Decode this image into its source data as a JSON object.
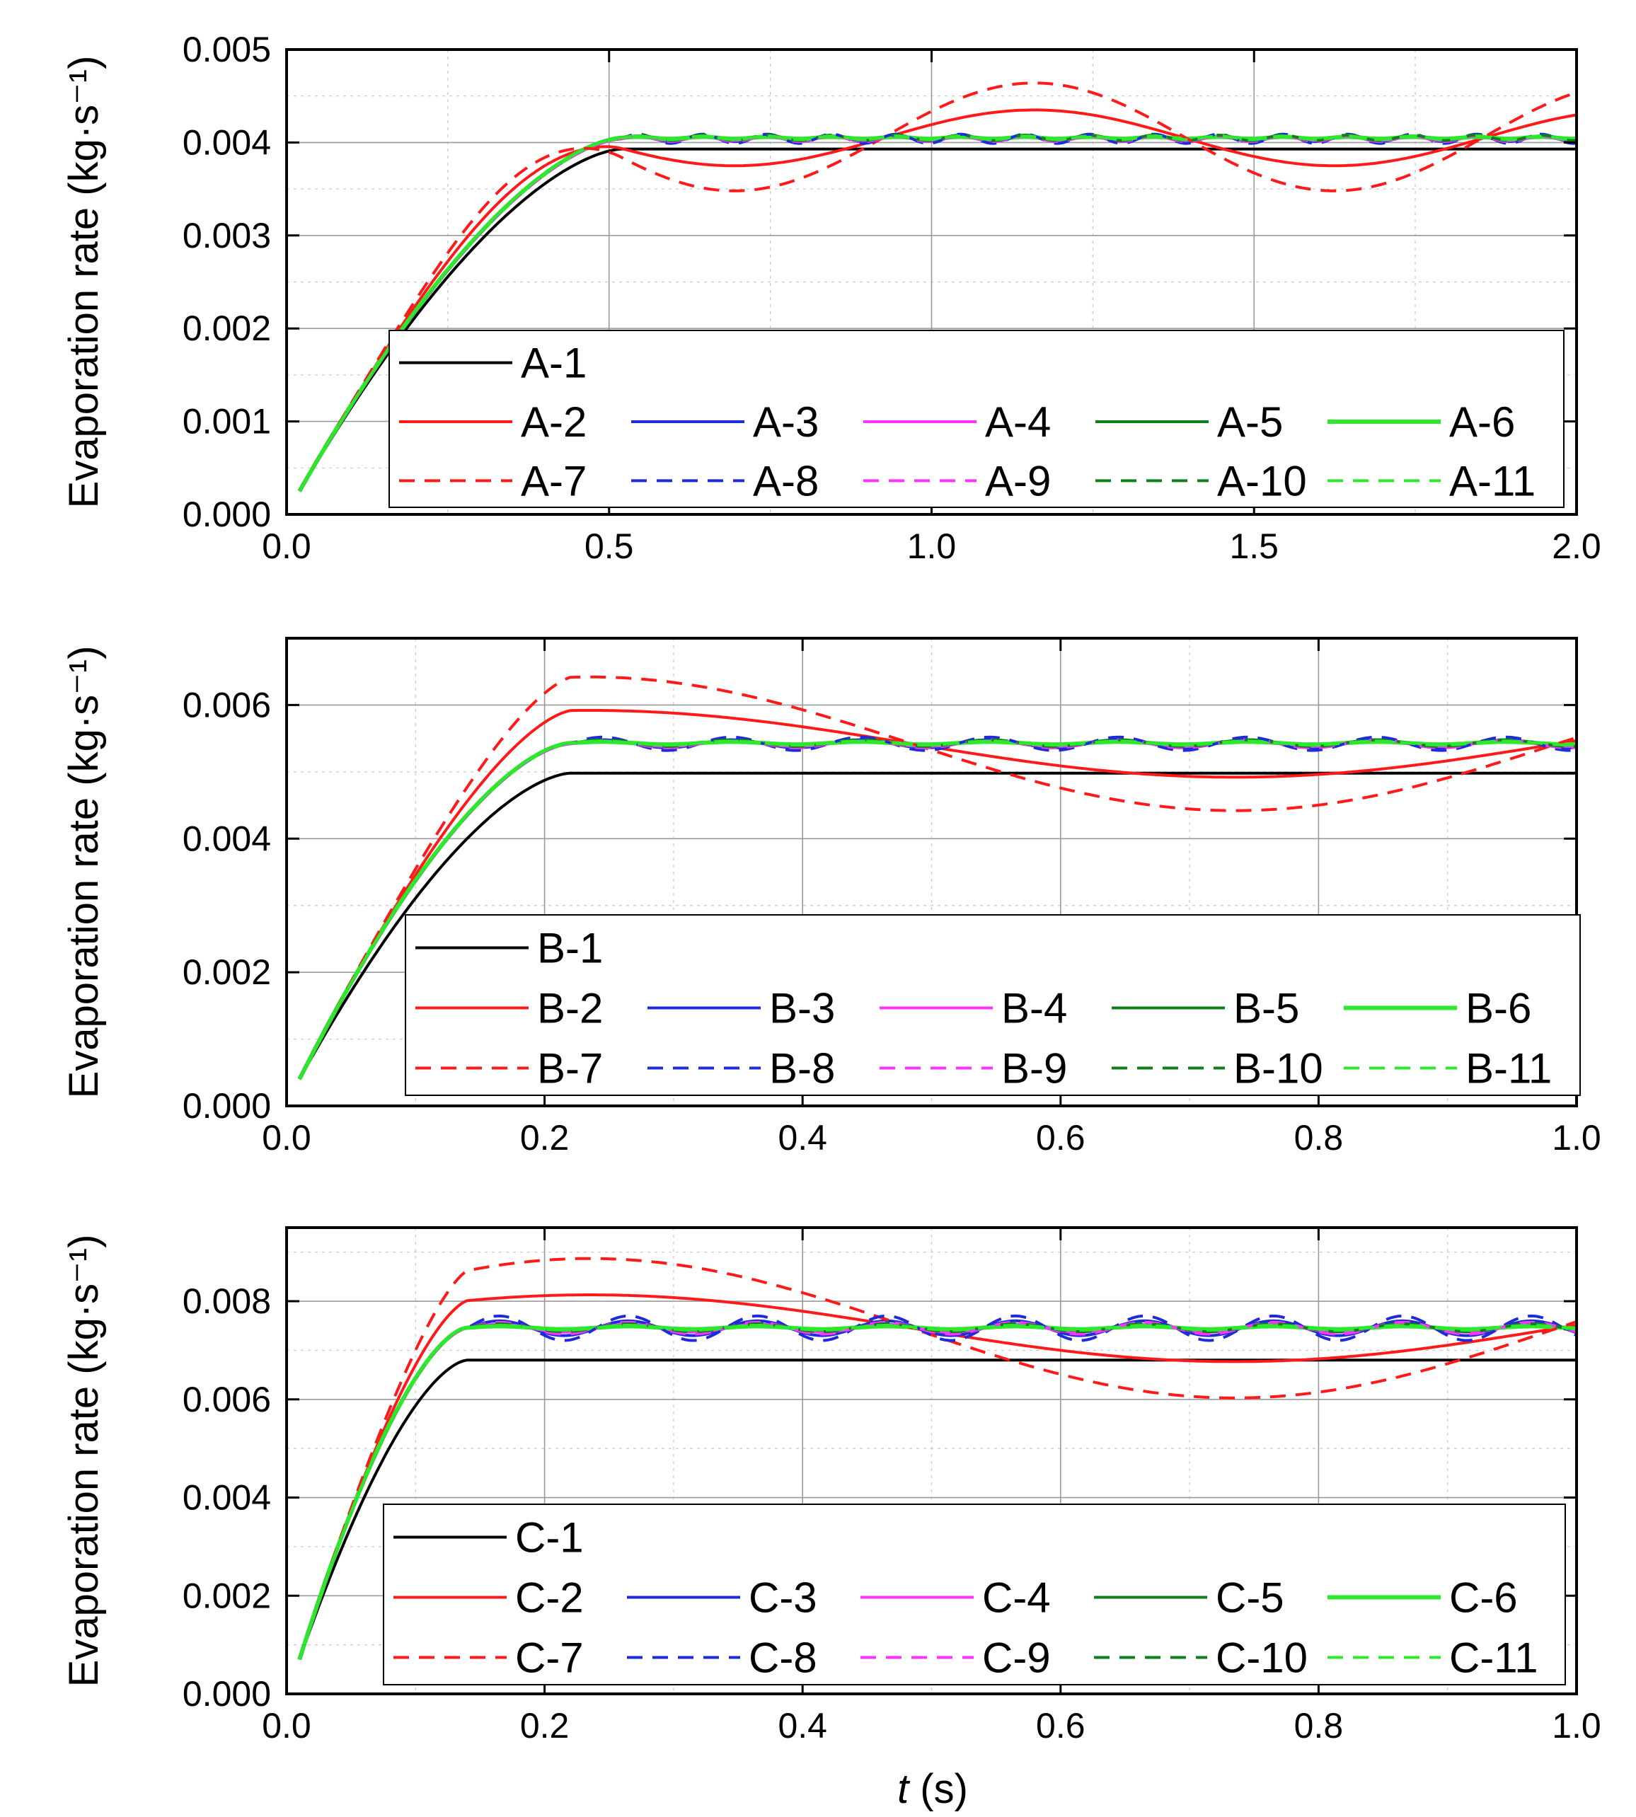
{
  "colors": {
    "black": "#000000",
    "red": "#ff1a1a",
    "blue": "#1f2ad8",
    "magenta": "#ff33ff",
    "darkgreen": "#0e7f1a",
    "green": "#2ee82e"
  },
  "xlabel": {
    "italic": "t",
    "rest": " (s)"
  },
  "chart_data": [
    {
      "type": "line",
      "panel": "A",
      "ylabel": "Evaporation rate (kg·s⁻¹)",
      "xlim": [
        0,
        2.0
      ],
      "ylim": [
        0,
        0.005
      ],
      "xticks": [
        0.0,
        0.5,
        1.0,
        1.5,
        2.0
      ],
      "xtick_labels": [
        "0.0",
        "0.5",
        "1.0",
        "1.5",
        "2.0"
      ],
      "yticks": [
        0.0,
        0.001,
        0.002,
        0.003,
        0.004,
        0.005
      ],
      "ytick_labels": [
        "0.000",
        "0.001",
        "0.002",
        "0.003",
        "0.004",
        "0.005"
      ],
      "grid": true,
      "legend_placement": "bottom-right",
      "rise_end": 0.52,
      "start_value": 0.00025,
      "series": [
        {
          "name": "A-1",
          "color": "black",
          "dash": false,
          "steady": 0.00393,
          "osc_amp": 0,
          "osc_period": 0.2,
          "slow_amp": 0,
          "slow_period": 0.93
        },
        {
          "name": "A-2",
          "color": "red",
          "dash": false,
          "steady": 0.00405,
          "osc_amp": 0,
          "osc_period": 0.2,
          "slow_amp": 0.0003,
          "slow_period": 0.93
        },
        {
          "name": "A-3",
          "color": "blue",
          "dash": false,
          "steady": 0.00404,
          "osc_amp": 3e-05,
          "osc_period": 0.1,
          "slow_amp": 0,
          "slow_period": 0.93
        },
        {
          "name": "A-4",
          "color": "magenta",
          "dash": false,
          "steady": 0.00404,
          "osc_amp": 2e-05,
          "osc_period": 0.1,
          "slow_amp": 0,
          "slow_period": 0.93
        },
        {
          "name": "A-5",
          "color": "darkgreen",
          "dash": false,
          "steady": 0.00405,
          "osc_amp": 2e-05,
          "osc_period": 0.1,
          "slow_amp": 0,
          "slow_period": 0.93
        },
        {
          "name": "A-6",
          "color": "green",
          "dash": false,
          "steady": 0.00405,
          "osc_amp": 1e-05,
          "osc_period": 0.1,
          "slow_amp": 0,
          "slow_period": 0.93
        },
        {
          "name": "A-7",
          "color": "red",
          "dash": true,
          "steady": 0.00406,
          "osc_amp": 0,
          "osc_period": 0.2,
          "slow_amp": 0.00058,
          "slow_period": 0.93
        },
        {
          "name": "A-8",
          "color": "blue",
          "dash": true,
          "steady": 0.00404,
          "osc_amp": 5e-05,
          "osc_period": 0.1,
          "slow_amp": 0,
          "slow_period": 0.93
        },
        {
          "name": "A-9",
          "color": "magenta",
          "dash": true,
          "steady": 0.00404,
          "osc_amp": 3e-05,
          "osc_period": 0.1,
          "slow_amp": 0,
          "slow_period": 0.93
        },
        {
          "name": "A-10",
          "color": "darkgreen",
          "dash": true,
          "steady": 0.00405,
          "osc_amp": 3e-05,
          "osc_period": 0.1,
          "slow_amp": 0,
          "slow_period": 0.93
        },
        {
          "name": "A-11",
          "color": "green",
          "dash": true,
          "steady": 0.00405,
          "osc_amp": 2e-05,
          "osc_period": 0.1,
          "slow_amp": 0,
          "slow_period": 0.93
        }
      ]
    },
    {
      "type": "line",
      "panel": "B",
      "ylabel": "Evaporation rate (kg·s⁻¹)",
      "xlim": [
        0,
        1.0
      ],
      "ylim": [
        0,
        0.007
      ],
      "xticks": [
        0.0,
        0.2,
        0.4,
        0.6,
        0.8,
        1.0
      ],
      "xtick_labels": [
        "0.0",
        "0.2",
        "0.4",
        "0.6",
        "0.8",
        "1.0"
      ],
      "yticks": [
        0.0,
        0.002,
        0.004,
        0.006
      ],
      "ytick_labels": [
        "0.000",
        "0.002",
        "0.004",
        "0.006"
      ],
      "grid": true,
      "legend_placement": "bottom-right",
      "rise_end": 0.22,
      "start_value": 0.0004,
      "series": [
        {
          "name": "B-1",
          "color": "black",
          "dash": false,
          "steady": 0.00498,
          "osc_amp": 0,
          "osc_period": 0.2,
          "slow_amp": 0,
          "slow_period": 1.0
        },
        {
          "name": "B-2",
          "color": "red",
          "dash": false,
          "steady": 0.00542,
          "osc_amp": 0,
          "osc_period": 0.2,
          "slow_amp": 0.0005,
          "slow_period": 1.0
        },
        {
          "name": "B-3",
          "color": "blue",
          "dash": false,
          "steady": 0.00542,
          "osc_amp": 6e-05,
          "osc_period": 0.1,
          "slow_amp": 0,
          "slow_period": 1.0
        },
        {
          "name": "B-4",
          "color": "magenta",
          "dash": false,
          "steady": 0.00542,
          "osc_amp": 4e-05,
          "osc_period": 0.1,
          "slow_amp": 0,
          "slow_period": 1.0
        },
        {
          "name": "B-5",
          "color": "darkgreen",
          "dash": false,
          "steady": 0.00543,
          "osc_amp": 3e-05,
          "osc_period": 0.1,
          "slow_amp": 0,
          "slow_period": 1.0
        },
        {
          "name": "B-6",
          "color": "green",
          "dash": false,
          "steady": 0.00543,
          "osc_amp": 2e-05,
          "osc_period": 0.1,
          "slow_amp": 0,
          "slow_period": 1.0
        },
        {
          "name": "B-7",
          "color": "red",
          "dash": true,
          "steady": 0.00542,
          "osc_amp": 0,
          "osc_period": 0.2,
          "slow_amp": 0.001,
          "slow_period": 1.0
        },
        {
          "name": "B-8",
          "color": "blue",
          "dash": true,
          "steady": 0.00542,
          "osc_amp": 0.0001,
          "osc_period": 0.1,
          "slow_amp": 0,
          "slow_period": 1.0
        },
        {
          "name": "B-9",
          "color": "magenta",
          "dash": true,
          "steady": 0.00542,
          "osc_amp": 6e-05,
          "osc_period": 0.1,
          "slow_amp": 0,
          "slow_period": 1.0
        },
        {
          "name": "B-10",
          "color": "darkgreen",
          "dash": true,
          "steady": 0.00543,
          "osc_amp": 5e-05,
          "osc_period": 0.1,
          "slow_amp": 0,
          "slow_period": 1.0
        },
        {
          "name": "B-11",
          "color": "green",
          "dash": true,
          "steady": 0.00543,
          "osc_amp": 3e-05,
          "osc_period": 0.1,
          "slow_amp": 0,
          "slow_period": 1.0
        }
      ]
    },
    {
      "type": "line",
      "panel": "C",
      "ylabel": "Evaporation rate (kg·s⁻¹)",
      "xlim": [
        0,
        1.0
      ],
      "ylim": [
        0,
        0.0095
      ],
      "xticks": [
        0.0,
        0.2,
        0.4,
        0.6,
        0.8,
        1.0
      ],
      "xtick_labels": [
        "0.0",
        "0.2",
        "0.4",
        "0.6",
        "0.8",
        "1.0"
      ],
      "yticks": [
        0.0,
        0.002,
        0.004,
        0.006,
        0.008
      ],
      "ytick_labels": [
        "0.000",
        "0.002",
        "0.004",
        "0.006",
        "0.008"
      ],
      "grid": true,
      "legend_placement": "bottom-right",
      "rise_end": 0.14,
      "start_value": 0.0007,
      "series": [
        {
          "name": "C-1",
          "color": "black",
          "dash": false,
          "steady": 0.0068,
          "osc_amp": 0,
          "osc_period": 0.2,
          "slow_amp": 0,
          "slow_period": 1.0
        },
        {
          "name": "C-2",
          "color": "red",
          "dash": false,
          "steady": 0.00745,
          "osc_amp": 0,
          "osc_period": 0.2,
          "slow_amp": 0.00068,
          "slow_period": 1.0
        },
        {
          "name": "C-3",
          "color": "blue",
          "dash": false,
          "steady": 0.00745,
          "osc_amp": 0.00015,
          "osc_period": 0.1,
          "slow_amp": 0,
          "slow_period": 1.0
        },
        {
          "name": "C-4",
          "color": "magenta",
          "dash": false,
          "steady": 0.00745,
          "osc_amp": 8e-05,
          "osc_period": 0.1,
          "slow_amp": 0,
          "slow_period": 1.0
        },
        {
          "name": "C-5",
          "color": "darkgreen",
          "dash": false,
          "steady": 0.00746,
          "osc_amp": 5e-05,
          "osc_period": 0.1,
          "slow_amp": 0,
          "slow_period": 1.0
        },
        {
          "name": "C-6",
          "color": "green",
          "dash": false,
          "steady": 0.00746,
          "osc_amp": 3e-05,
          "osc_period": 0.1,
          "slow_amp": 0,
          "slow_period": 1.0
        },
        {
          "name": "C-7",
          "color": "red",
          "dash": true,
          "steady": 0.00745,
          "osc_amp": 0,
          "osc_period": 0.2,
          "slow_amp": 0.00142,
          "slow_period": 1.0
        },
        {
          "name": "C-8",
          "color": "blue",
          "dash": true,
          "steady": 0.00745,
          "osc_amp": 0.00025,
          "osc_period": 0.1,
          "slow_amp": 0,
          "slow_period": 1.0
        },
        {
          "name": "C-9",
          "color": "magenta",
          "dash": true,
          "steady": 0.00745,
          "osc_amp": 0.00012,
          "osc_period": 0.1,
          "slow_amp": 0,
          "slow_period": 1.0
        },
        {
          "name": "C-10",
          "color": "darkgreen",
          "dash": true,
          "steady": 0.00746,
          "osc_amp": 8e-05,
          "osc_period": 0.1,
          "slow_amp": 0,
          "slow_period": 1.0
        },
        {
          "name": "C-11",
          "color": "green",
          "dash": true,
          "steady": 0.00746,
          "osc_amp": 5e-05,
          "osc_period": 0.1,
          "slow_amp": 0,
          "slow_period": 1.0
        }
      ]
    }
  ]
}
